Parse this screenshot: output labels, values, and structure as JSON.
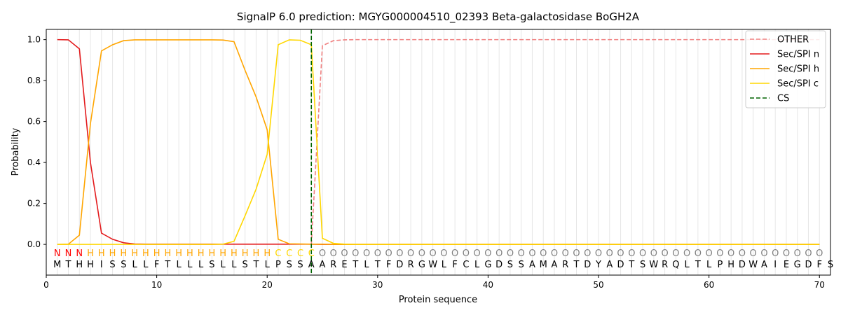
{
  "chart_data": {
    "type": "line",
    "title": "SignalP 6.0 prediction: MGYG000004510_02393 Beta-galactosidase BoGH2A",
    "xlabel": "Protein sequence",
    "ylabel": "Probability",
    "xlim": [
      0,
      71
    ],
    "ylim": [
      -0.15,
      1.05
    ],
    "xticks": [
      0,
      10,
      20,
      30,
      40,
      50,
      60,
      70
    ],
    "yticks": [
      0.0,
      0.2,
      0.4,
      0.6,
      0.8,
      1.0
    ],
    "xtick_labels": [
      "0",
      "10",
      "20",
      "30",
      "40",
      "50",
      "60",
      "70"
    ],
    "ytick_labels": [
      "0.0",
      "0.2",
      "0.4",
      "0.6",
      "0.8",
      "1.0"
    ],
    "grid": "vertical lines at each residue",
    "legend_position": "top-right",
    "sequence": [
      "M",
      "T",
      "H",
      "H",
      "I",
      "S",
      "S",
      "L",
      "L",
      "F",
      "T",
      "L",
      "L",
      "L",
      "S",
      "L",
      "L",
      "S",
      "T",
      "L",
      "P",
      "S",
      "S",
      "A",
      "A",
      "R",
      "E",
      "T",
      "L",
      "T",
      "F",
      "D",
      "R",
      "G",
      "W",
      "L",
      "F",
      "C",
      "L",
      "G",
      "D",
      "S",
      "S",
      "A",
      "M",
      "A",
      "R",
      "T",
      "D",
      "Y",
      "A",
      "D",
      "T",
      "S",
      "W",
      "R",
      "Q",
      "L",
      "T",
      "L",
      "P",
      "H",
      "D",
      "W",
      "A",
      "I",
      "E",
      "G",
      "D",
      "F",
      "S"
    ],
    "predicted_labels": [
      "N",
      "N",
      "N",
      "H",
      "H",
      "H",
      "H",
      "H",
      "H",
      "H",
      "H",
      "H",
      "H",
      "H",
      "H",
      "H",
      "H",
      "H",
      "H",
      "H",
      "C",
      "C",
      "C",
      "C",
      "O",
      "O",
      "O",
      "O",
      "O",
      "O",
      "O",
      "O",
      "O",
      "O",
      "O",
      "O",
      "O",
      "O",
      "O",
      "O",
      "O",
      "O",
      "O",
      "O",
      "O",
      "O",
      "O",
      "O",
      "O",
      "O",
      "O",
      "O",
      "O",
      "O",
      "O",
      "O",
      "O",
      "O",
      "O",
      "O",
      "O",
      "O",
      "O",
      "O",
      "O",
      "O",
      "O",
      "O",
      "O",
      "O"
    ],
    "label_colors": {
      "N": "#ff0000",
      "H": "#ffa500",
      "C": "#ffd700",
      "O": "#808080"
    },
    "cleavage_site": 24,
    "series": [
      {
        "name": "OTHER",
        "color": "#f08080",
        "dash": "dashed",
        "start": 24,
        "values": [
          0.0,
          0.97,
          0.995,
          0.999,
          1.0,
          1.0,
          1.0,
          1.0,
          1.0,
          1.0,
          1.0,
          1.0,
          1.0,
          1.0,
          1.0,
          1.0,
          1.0,
          1.0,
          1.0,
          1.0,
          1.0,
          1.0,
          1.0,
          1.0,
          1.0,
          1.0,
          1.0,
          1.0,
          1.0,
          1.0,
          1.0,
          1.0,
          1.0,
          1.0,
          1.0,
          1.0,
          1.0,
          1.0,
          1.0,
          1.0,
          1.0,
          1.0,
          1.0,
          1.0,
          1.0,
          1.0,
          1.0
        ]
      },
      {
        "name": "Sec/SPI n",
        "color": "#e31a1c",
        "dash": "solid",
        "start": 1,
        "values": [
          1.0,
          0.999,
          0.955,
          0.4,
          0.055,
          0.025,
          0.008,
          0.002,
          0.001,
          0.001,
          0.001,
          0.001,
          0.001,
          0.001,
          0.001,
          0.001,
          0.001,
          0.001,
          0.001,
          0.001,
          0.001,
          0.001,
          0.001,
          0.001,
          0.0,
          0.0,
          0.0,
          0.0,
          0.0,
          0.0,
          0.0,
          0.0,
          0.0,
          0.0,
          0.0,
          0.0,
          0.0,
          0.0,
          0.0,
          0.0,
          0.0,
          0.0,
          0.0,
          0.0,
          0.0,
          0.0,
          0.0,
          0.0,
          0.0,
          0.0,
          0.0,
          0.0,
          0.0,
          0.0,
          0.0,
          0.0,
          0.0,
          0.0,
          0.0,
          0.0,
          0.0,
          0.0,
          0.0,
          0.0,
          0.0,
          0.0,
          0.0,
          0.0,
          0.0,
          0.0
        ]
      },
      {
        "name": "Sec/SPI h",
        "color": "#ffa500",
        "dash": "solid",
        "start": 1,
        "values": [
          0.0,
          0.001,
          0.045,
          0.59,
          0.945,
          0.975,
          0.995,
          0.999,
          0.999,
          0.999,
          0.999,
          0.999,
          0.999,
          0.999,
          0.999,
          0.998,
          0.99,
          0.85,
          0.72,
          0.56,
          0.025,
          0.003,
          0.002,
          0.001,
          0.001,
          0.0,
          0.0,
          0.0,
          0.0,
          0.0,
          0.0,
          0.0,
          0.0,
          0.0,
          0.0,
          0.0,
          0.0,
          0.0,
          0.0,
          0.0,
          0.0,
          0.0,
          0.0,
          0.0,
          0.0,
          0.0,
          0.0,
          0.0,
          0.0,
          0.0,
          0.0,
          0.0,
          0.0,
          0.0,
          0.0,
          0.0,
          0.0,
          0.0,
          0.0,
          0.0,
          0.0,
          0.0,
          0.0,
          0.0,
          0.0,
          0.0,
          0.0,
          0.0,
          0.0,
          0.0
        ]
      },
      {
        "name": "Sec/SPI c",
        "color": "#ffd700",
        "dash": "solid",
        "start": 1,
        "values": [
          0.0,
          0.0,
          0.0,
          0.0,
          0.0,
          0.0,
          0.0,
          0.0,
          0.0,
          0.0,
          0.0,
          0.0,
          0.0,
          0.0,
          0.0,
          0.001,
          0.015,
          0.14,
          0.27,
          0.44,
          0.975,
          0.999,
          0.997,
          0.975,
          0.03,
          0.005,
          0.001,
          0.0,
          0.0,
          0.0,
          0.0,
          0.0,
          0.0,
          0.0,
          0.0,
          0.0,
          0.0,
          0.0,
          0.0,
          0.0,
          0.0,
          0.0,
          0.0,
          0.0,
          0.0,
          0.0,
          0.0,
          0.0,
          0.0,
          0.0,
          0.0,
          0.0,
          0.0,
          0.0,
          0.0,
          0.0,
          0.0,
          0.0,
          0.0,
          0.0,
          0.0,
          0.0,
          0.0,
          0.0,
          0.0,
          0.0,
          0.0,
          0.0,
          0.0,
          0.0
        ]
      }
    ],
    "legend": [
      {
        "name": "OTHER",
        "color": "#f08080",
        "dash": "dashed"
      },
      {
        "name": "Sec/SPI n",
        "color": "#e31a1c",
        "dash": "solid"
      },
      {
        "name": "Sec/SPI h",
        "color": "#ffa500",
        "dash": "solid"
      },
      {
        "name": "Sec/SPI c",
        "color": "#ffd700",
        "dash": "solid"
      },
      {
        "name": "CS",
        "color": "#006400",
        "dash": "dashed"
      }
    ]
  }
}
